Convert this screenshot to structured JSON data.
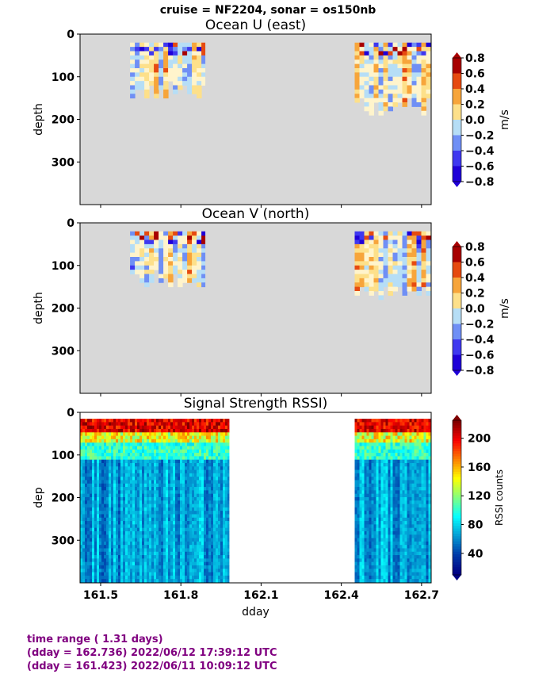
{
  "suptitle": "cruise = NF2204,  sonar = os150nb",
  "chart_data": [
    {
      "type": "heatmap",
      "title": "Ocean U (east)",
      "ylabel": "depth",
      "xlabel": "",
      "xlim": [
        161.423,
        162.736
      ],
      "ylim": [
        400,
        0
      ],
      "yticks": [
        0,
        100,
        200,
        300
      ],
      "xticks": [
        161.5,
        161.8,
        162.1,
        162.4,
        162.7
      ],
      "colorbar": {
        "label": "m/s",
        "ticks": [
          "0.8",
          "0.6",
          "0.4",
          "0.2",
          "0.0",
          "−0.2",
          "−0.4",
          "−0.6",
          "−0.8"
        ],
        "range": [
          -0.8,
          0.8
        ]
      },
      "data_segments": [
        {
          "x_start": 161.61,
          "x_end": 161.89,
          "max_depth": 150
        },
        {
          "x_start": 162.45,
          "x_end": 162.736,
          "max_depth": 185
        }
      ],
      "nodata_color": "#d8d8d8"
    },
    {
      "type": "heatmap",
      "title": "Ocean V (north)",
      "ylabel": "depth",
      "xlabel": "",
      "xlim": [
        161.423,
        162.736
      ],
      "ylim": [
        400,
        0
      ],
      "yticks": [
        0,
        100,
        200,
        300
      ],
      "xticks": [
        161.5,
        161.8,
        162.1,
        162.4,
        162.7
      ],
      "colorbar": {
        "label": "m/s",
        "ticks": [
          "0.8",
          "0.6",
          "0.4",
          "0.2",
          "0.0",
          "−0.2",
          "−0.4",
          "−0.6",
          "−0.8"
        ],
        "range": [
          -0.8,
          0.8
        ]
      },
      "data_segments": [
        {
          "x_start": 161.61,
          "x_end": 161.89,
          "max_depth": 150
        },
        {
          "x_start": 162.45,
          "x_end": 162.736,
          "max_depth": 185
        }
      ],
      "nodata_color": "#d8d8d8"
    },
    {
      "type": "heatmap",
      "title": "Signal Strength RSSI)",
      "ylabel": "dep",
      "xlabel": "dday",
      "xlim": [
        161.423,
        162.736
      ],
      "ylim": [
        400,
        0
      ],
      "yticks": [
        0,
        100,
        200,
        300
      ],
      "xticks": [
        161.5,
        161.8,
        162.1,
        162.4,
        162.7
      ],
      "xticklabels": [
        "161.5",
        "161.8",
        "162.1",
        "162.4",
        "162.7"
      ],
      "colorbar": {
        "label": "RSSI counts",
        "ticks": [
          "200",
          "160",
          "120",
          "80",
          "40"
        ],
        "range": [
          10,
          225
        ]
      },
      "data_segments": [
        {
          "x_start": 161.423,
          "x_end": 161.98,
          "max_depth": 400
        },
        {
          "x_start": 162.45,
          "x_end": 162.736,
          "max_depth": 400
        }
      ],
      "nodata_color": "#ffffff"
    }
  ],
  "footer": {
    "line1": "time range ( 1.31 days)",
    "line2": "(dday = 162.736) 2022/06/12 17:39:12 UTC",
    "line3": "(dday = 161.423) 2022/06/11 10:09:12 UTC"
  }
}
